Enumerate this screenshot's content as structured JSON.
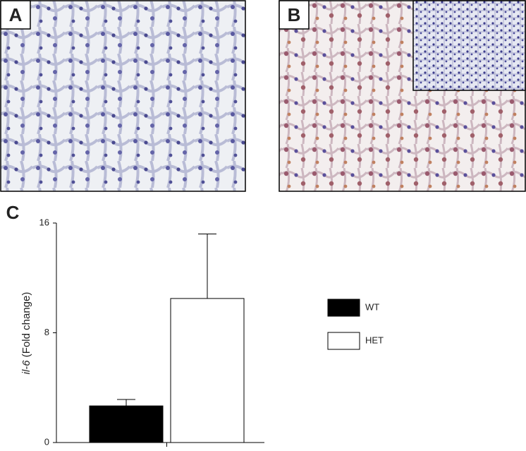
{
  "panel_labels": [
    "A",
    "B",
    "C"
  ],
  "chart_data": {
    "type": "bar",
    "ylabel": [
      "il-6",
      "(Fold change)"
    ],
    "categories": [
      null
    ],
    "series": [
      {
        "name": "WT",
        "color": "#000000",
        "values": [
          2.67
        ],
        "errors": [
          0.47
        ]
      },
      {
        "name": "HET",
        "color": "#ffffff",
        "values": [
          10.5
        ],
        "errors": [
          4.7
        ]
      }
    ],
    "ylim": [
      0,
      16
    ],
    "yticks": [
      0,
      8,
      16
    ]
  }
}
